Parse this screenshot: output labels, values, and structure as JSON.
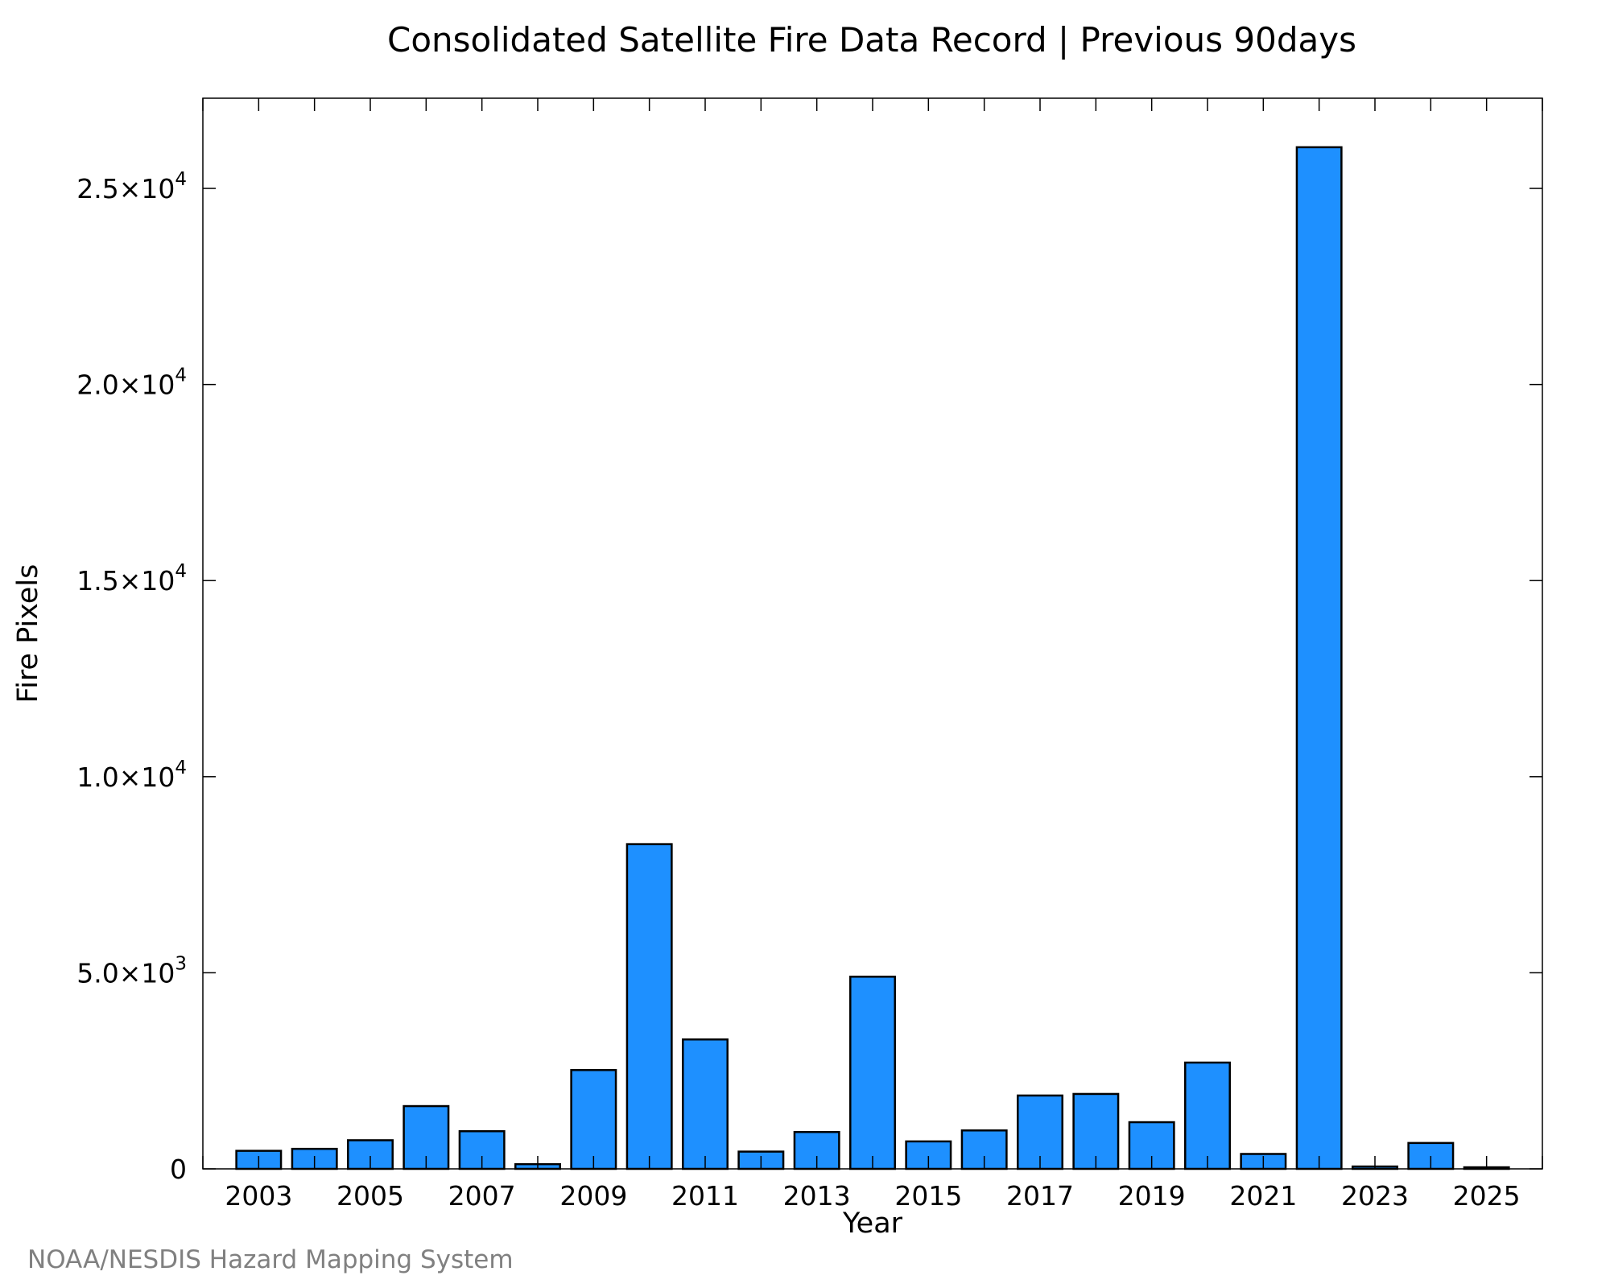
{
  "chart_data": {
    "type": "bar",
    "title": "Consolidated Satellite Fire Data Record | Previous 90days",
    "xlabel": "Year",
    "ylabel": "Fire Pixels",
    "x": [
      2003,
      2004,
      2005,
      2006,
      2007,
      2008,
      2009,
      2010,
      2011,
      2012,
      2013,
      2014,
      2015,
      2016,
      2017,
      2018,
      2019,
      2020,
      2021,
      2022,
      2023,
      2024,
      2025
    ],
    "values": [
      460,
      510,
      730,
      1600,
      960,
      120,
      2520,
      8280,
      3300,
      440,
      940,
      4900,
      700,
      980,
      1870,
      1910,
      1190,
      2710,
      380,
      26050,
      60,
      660,
      40
    ],
    "xlim": [
      2002.0,
      2026.0
    ],
    "ylim": [
      0,
      27300
    ],
    "x_ticks": [
      2003,
      2005,
      2007,
      2009,
      2011,
      2013,
      2015,
      2017,
      2019,
      2021,
      2023,
      2025
    ],
    "y_ticks": [
      {
        "value": 0,
        "mantissa": "0",
        "exponent": ""
      },
      {
        "value": 5000,
        "mantissa": "5.0×10",
        "exponent": "3"
      },
      {
        "value": 10000,
        "mantissa": "1.0×10",
        "exponent": "4"
      },
      {
        "value": 15000,
        "mantissa": "1.5×10",
        "exponent": "4"
      },
      {
        "value": 20000,
        "mantissa": "2.0×10",
        "exponent": "4"
      },
      {
        "value": 25000,
        "mantissa": "2.5×10",
        "exponent": "4"
      }
    ],
    "grid": false,
    "bar_color": "#1E90FF",
    "credit": "NOAA/NESDIS Hazard Mapping System"
  }
}
